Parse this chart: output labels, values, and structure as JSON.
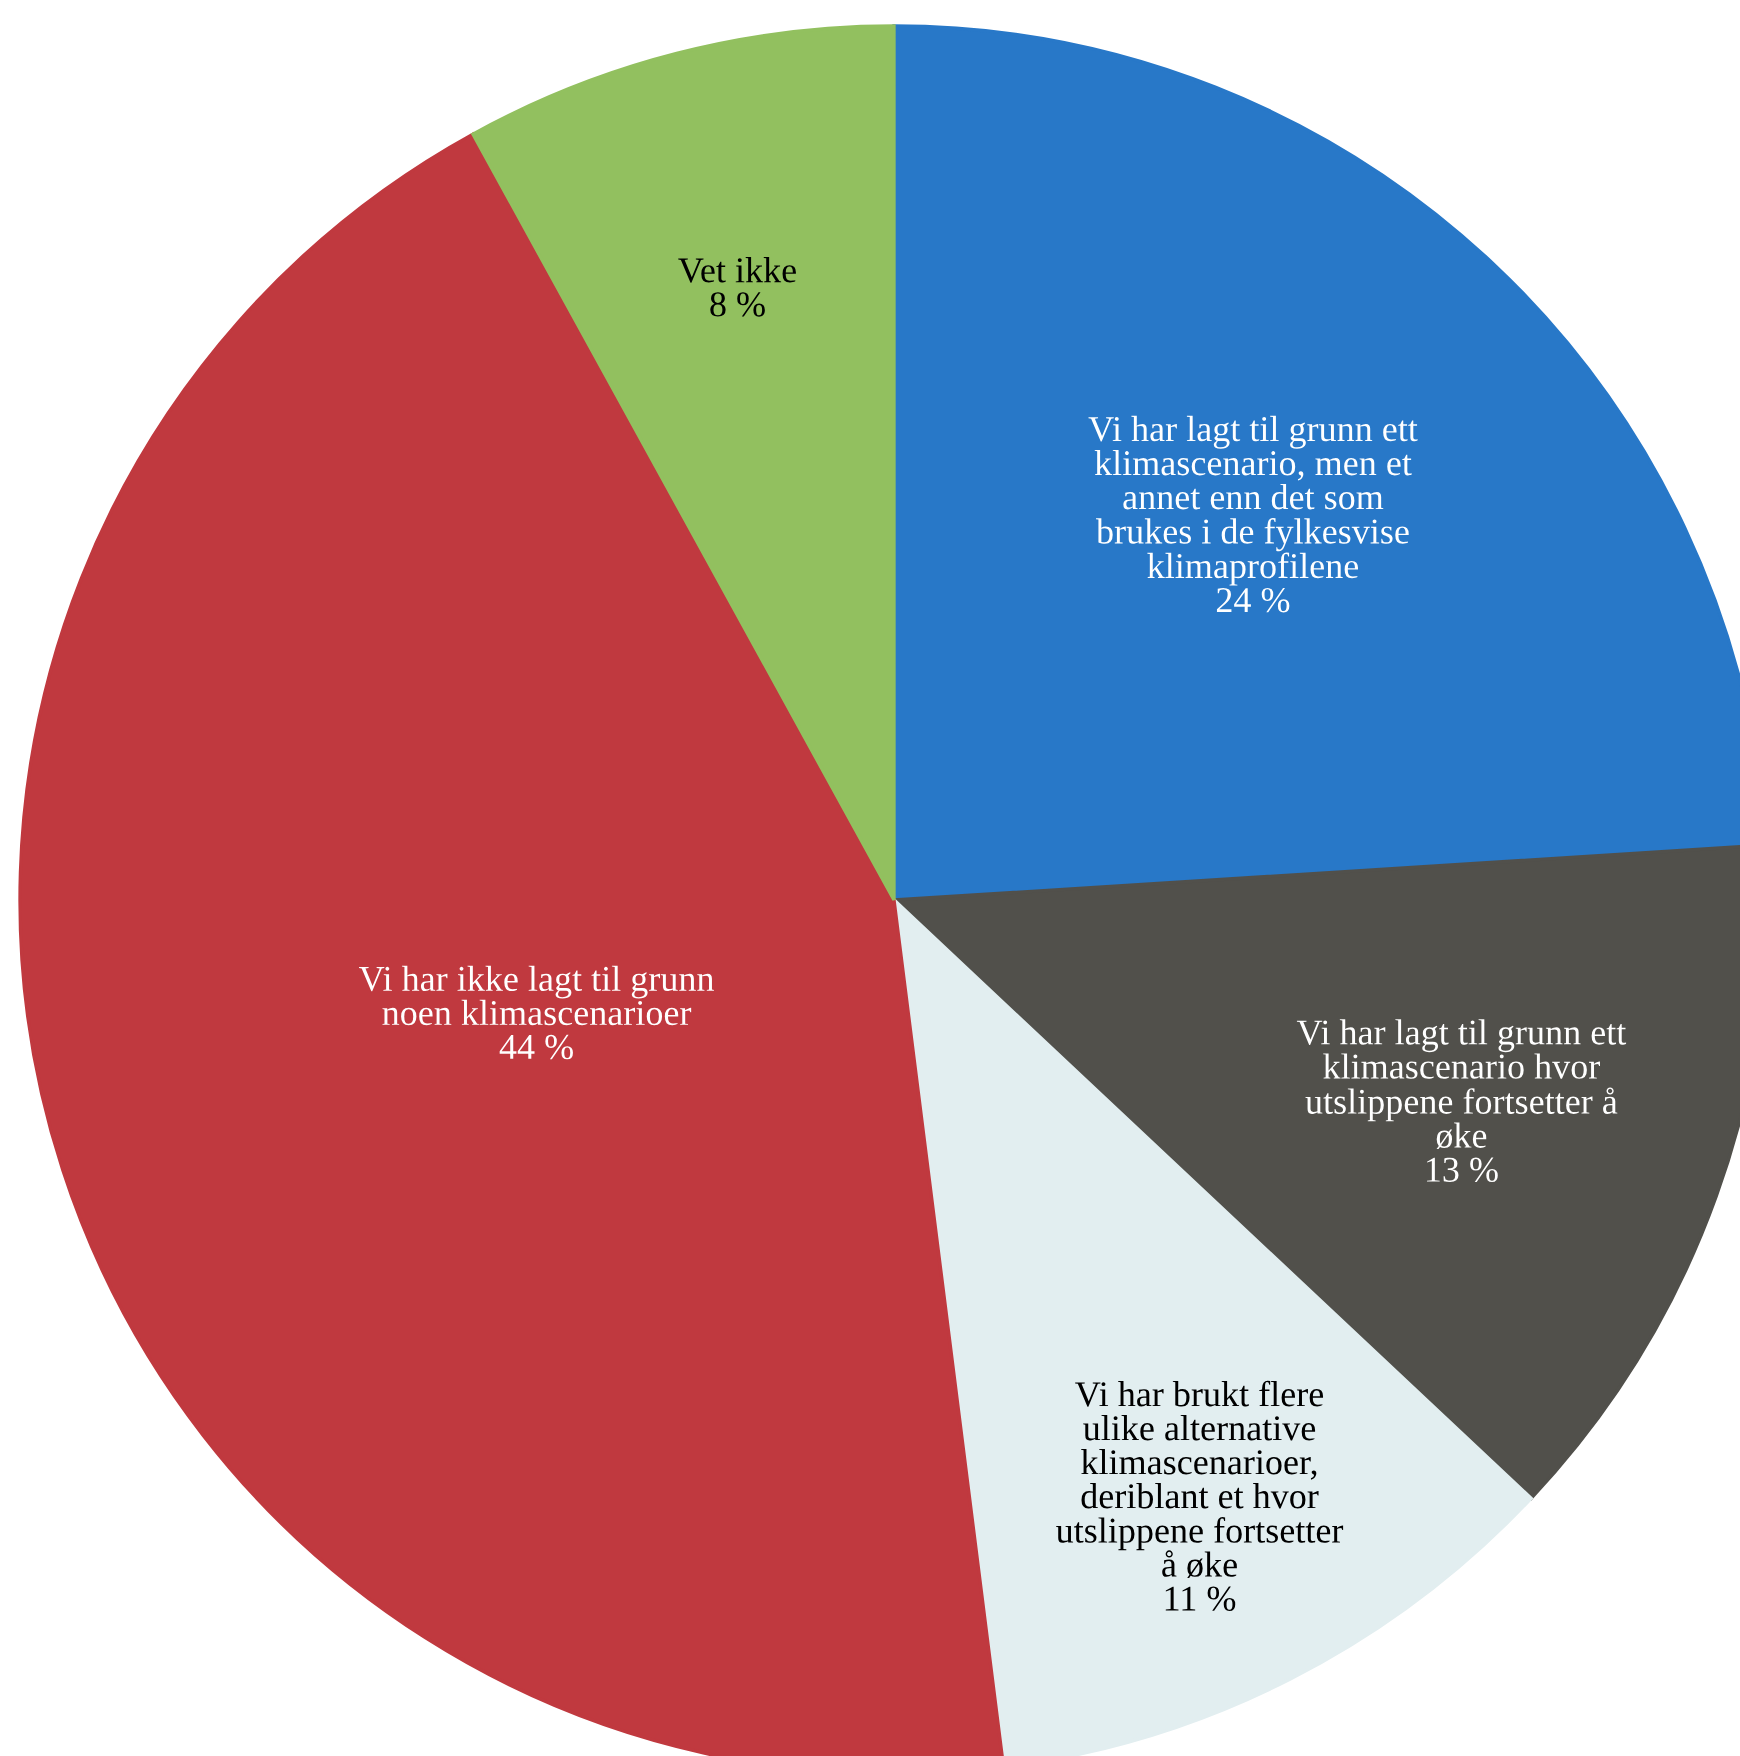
{
  "chart_data": {
    "type": "pie",
    "categories": [
      "Vi har lagt til grunn ett\nklimascenario, men et\nannet enn det som\nbrukes i de fylkesvise\nklimaprofilene",
      "Vi har lagt til grunn ett\nklimascenario hvor\nutslippene fortsetter å\nøke",
      "Vi har brukt flere\nulike alternative\nklimascenarioer,\nderiblant et hvor\nutslippene fortsetter\nå øke",
      "Vi har ikke lagt til grunn\nnoen klimascenarioer",
      "Vet ikke"
    ],
    "values": [
      24,
      13,
      11,
      44,
      8
    ],
    "value_labels": [
      "24 %",
      "13 %",
      "11 %",
      "44 %",
      "8 %"
    ],
    "colors": [
      "#2878c8",
      "#51504b",
      "#e2eef0",
      "#c0393f",
      "#92c05f"
    ],
    "legend": false
  }
}
